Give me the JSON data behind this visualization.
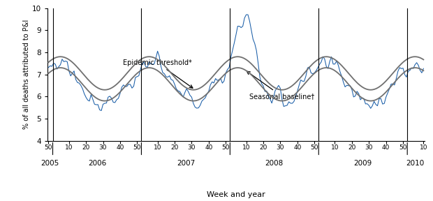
{
  "title": "",
  "ylabel": "% of all deaths attributed to P&I",
  "xlabel": "Week and year",
  "ylim": [
    4,
    10
  ],
  "yticks": [
    4,
    5,
    6,
    7,
    8,
    9,
    10
  ],
  "line_color": "#1a5ea8",
  "smooth_color": "#707070",
  "background_color": "#ffffff",
  "annotation_epidemic": "Epidemic threshold*",
  "annotation_seasonal": "Seasonal baseline†",
  "fig_width": 6.2,
  "fig_height": 2.88,
  "dpi": 100
}
